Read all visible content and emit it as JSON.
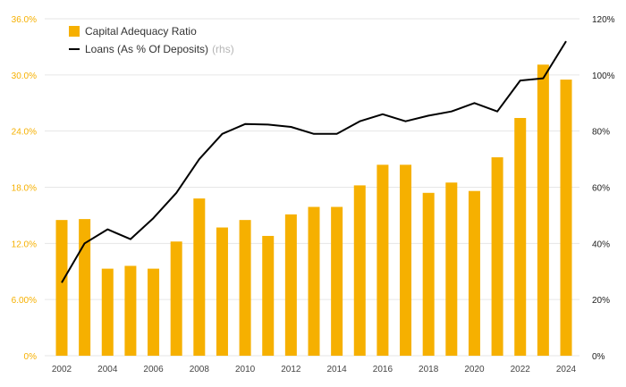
{
  "colors": {
    "bar": "#f6b000",
    "line": "#000000",
    "left_axis_text": "#f6b000",
    "grid": "#e6e6e6"
  },
  "chart_data": {
    "type": "bar",
    "title": "",
    "xlabel": "",
    "ylabel": "",
    "x": [
      2002,
      2003,
      2004,
      2005,
      2006,
      2007,
      2008,
      2009,
      2010,
      2011,
      2012,
      2013,
      2014,
      2015,
      2016,
      2017,
      2018,
      2019,
      2020,
      2021,
      2022,
      2023,
      2024
    ],
    "x_tick_labels": [
      "2002",
      "2004",
      "2006",
      "2008",
      "2010",
      "2012",
      "2014",
      "2016",
      "2018",
      "2020",
      "2022",
      "2024"
    ],
    "ylim": [
      0,
      36
    ],
    "y_tick_labels": [
      "0%",
      "6.00%",
      "12.0%",
      "18.0%",
      "24.0%",
      "30.0%",
      "36.0%"
    ],
    "y2lim": [
      0,
      120
    ],
    "y2_tick_labels": [
      "0%",
      "20%",
      "40%",
      "60%",
      "80%",
      "100%",
      "120%"
    ],
    "grid": true,
    "legend_position": "top-left",
    "series": [
      {
        "name": "Capital Adequacy Ratio",
        "type": "bar",
        "axis": "left",
        "values": [
          14.5,
          14.6,
          9.3,
          9.6,
          9.3,
          12.2,
          16.8,
          13.7,
          14.5,
          12.8,
          15.1,
          15.9,
          15.9,
          18.2,
          20.4,
          20.4,
          17.4,
          18.5,
          17.6,
          21.2,
          25.4,
          31.1,
          29.5
        ]
      },
      {
        "name": "Loans (As % Of Deposits)",
        "name_suffix": "(rhs)",
        "type": "line",
        "axis": "right",
        "values": [
          26,
          40,
          45,
          41.5,
          49,
          58,
          70,
          79,
          82.5,
          82.3,
          81.5,
          79,
          79,
          83.5,
          86,
          83.5,
          85.5,
          87,
          90,
          87,
          98,
          98.8,
          112
        ]
      }
    ]
  }
}
